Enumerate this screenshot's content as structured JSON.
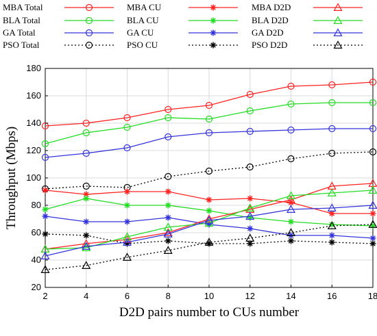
{
  "chart_data": {
    "type": "line",
    "title": "",
    "xlabel": "D2D pairs number to CUs number",
    "ylabel": "Throughput (Mbps)",
    "x": [
      2,
      4,
      6,
      8,
      10,
      12,
      14,
      16,
      18
    ],
    "xticks": [
      "2",
      "4",
      "6",
      "8",
      "10",
      "12",
      "14",
      "16",
      "18"
    ],
    "yticks": [
      "20",
      "40",
      "60",
      "80",
      "100",
      "120",
      "140",
      "160",
      "180"
    ],
    "xlim": [
      2,
      18
    ],
    "ylim": [
      20,
      180
    ],
    "grid": true,
    "legend_placement": "top (outside, 3 columns)",
    "series": [
      {
        "name": "MBA Total",
        "color": "#ff2020",
        "marker": "circle",
        "dash": "solid",
        "values": [
          138,
          140,
          144,
          150,
          153,
          161,
          167,
          168,
          170
        ]
      },
      {
        "name": "BLA Total",
        "color": "#22dd22",
        "marker": "circle",
        "dash": "solid",
        "values": [
          125,
          133,
          137,
          144,
          143,
          149,
          154,
          155,
          155
        ]
      },
      {
        "name": "GA Total",
        "color": "#3333dd",
        "marker": "circle",
        "dash": "solid",
        "values": [
          115,
          118,
          122,
          130,
          133,
          134,
          135,
          136,
          136
        ]
      },
      {
        "name": "PSO Total",
        "color": "#000000",
        "marker": "circle",
        "dash": "dotted",
        "values": [
          92,
          94,
          93,
          101,
          105,
          108,
          114,
          118,
          119
        ]
      },
      {
        "name": "MBA CU",
        "color": "#ff2020",
        "marker": "asterisk",
        "dash": "solid",
        "values": [
          91,
          88,
          90,
          90,
          84,
          85,
          82,
          74,
          74
        ]
      },
      {
        "name": "BLA CU",
        "color": "#22dd22",
        "marker": "asterisk",
        "dash": "solid",
        "values": [
          77,
          85,
          80,
          80,
          76,
          71,
          68,
          66,
          65
        ]
      },
      {
        "name": "GA CU",
        "color": "#3333dd",
        "marker": "asterisk",
        "dash": "solid",
        "values": [
          72,
          68,
          68,
          71,
          66,
          63,
          58,
          58,
          56
        ]
      },
      {
        "name": "PSO CU",
        "color": "#000000",
        "marker": "asterisk",
        "dash": "dotted",
        "values": [
          59,
          58,
          52,
          54,
          52,
          52,
          54,
          53,
          52
        ]
      },
      {
        "name": "MBA D2D",
        "color": "#ff2020",
        "marker": "triangle",
        "dash": "solid",
        "values": [
          48,
          52,
          55,
          60,
          70,
          77,
          84,
          94,
          96
        ]
      },
      {
        "name": "BLA D2D",
        "color": "#22dd22",
        "marker": "triangle",
        "dash": "solid",
        "values": [
          48,
          49,
          57,
          64,
          67,
          78,
          87,
          89,
          91
        ]
      },
      {
        "name": "GA D2D",
        "color": "#3333dd",
        "marker": "triangle",
        "dash": "solid",
        "values": [
          43,
          50,
          53,
          59,
          69,
          72,
          77,
          78,
          80
        ]
      },
      {
        "name": "PSO D2D",
        "color": "#000000",
        "marker": "triangle",
        "dash": "dotted",
        "values": [
          33,
          36,
          42,
          47,
          53,
          56,
          60,
          65,
          66
        ]
      }
    ]
  }
}
